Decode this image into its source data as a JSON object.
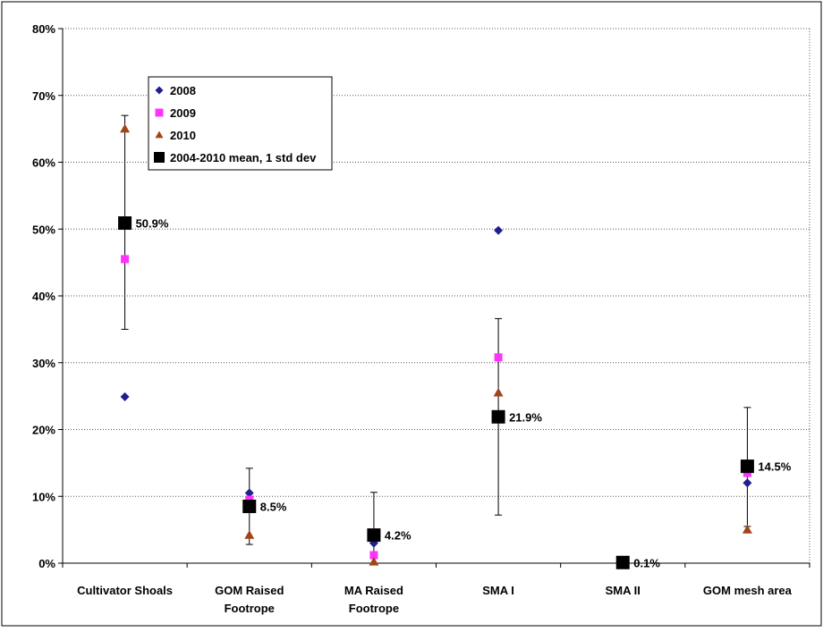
{
  "chart_data": {
    "type": "scatter",
    "categories": [
      [
        "Cultivator Shoals"
      ],
      [
        "GOM Raised",
        "Footrope"
      ],
      [
        "MA Raised",
        "Footrope"
      ],
      [
        "SMA I"
      ],
      [
        "SMA II"
      ],
      [
        "GOM mesh area"
      ]
    ],
    "yticks": [
      "0%",
      "10%",
      "20%",
      "30%",
      "40%",
      "50%",
      "60%",
      "70%",
      "80%"
    ],
    "ylim": [
      0,
      80
    ],
    "grid": "horizontal-dotted",
    "legend_position": "top-left",
    "series": [
      {
        "name": "2008",
        "marker": "diamond",
        "color": "#1f1f8f",
        "values": [
          24.9,
          10.5,
          3.0,
          49.8,
          null,
          12.0
        ]
      },
      {
        "name": "2009",
        "marker": "square",
        "color": "#ff33ff",
        "values": [
          45.5,
          9.5,
          1.2,
          30.8,
          null,
          13.5
        ]
      },
      {
        "name": "2010",
        "marker": "triangle",
        "color": "#a0441a",
        "values": [
          65.0,
          4.2,
          0.2,
          25.5,
          null,
          5.0
        ]
      },
      {
        "name": "2004-2010 mean, 1 std dev",
        "marker": "square",
        "color": "#000000",
        "values": [
          50.9,
          8.5,
          4.2,
          21.9,
          0.1,
          14.5
        ],
        "err_low": [
          35.0,
          2.8,
          0.0,
          7.2,
          0.0,
          5.5
        ],
        "err_high": [
          67.0,
          14.2,
          10.6,
          36.6,
          0.0,
          23.3
        ],
        "labels": [
          "50.9%",
          "8.5%",
          "4.2%",
          "21.9%",
          "0.1%",
          "14.5%"
        ]
      }
    ]
  }
}
